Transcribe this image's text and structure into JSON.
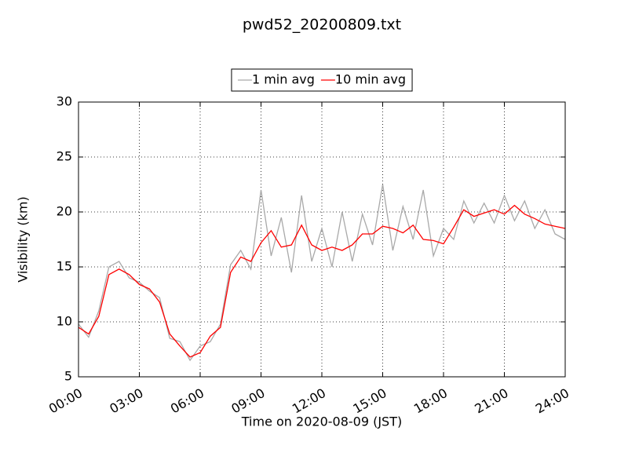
{
  "chart_data": {
    "type": "line",
    "title": "pwd52_20200809.txt",
    "x_label": "Time on 2020-08-09 (JST)",
    "y_label": "Visibility (km)",
    "x": [
      "00:00",
      "00:30",
      "01:00",
      "01:30",
      "02:00",
      "02:30",
      "03:00",
      "03:30",
      "04:00",
      "04:30",
      "05:00",
      "05:30",
      "06:00",
      "06:30",
      "07:00",
      "07:30",
      "08:00",
      "08:30",
      "09:00",
      "09:30",
      "10:00",
      "10:30",
      "11:00",
      "11:30",
      "12:00",
      "12:30",
      "13:00",
      "13:30",
      "14:00",
      "14:30",
      "15:00",
      "15:30",
      "16:00",
      "16:30",
      "17:00",
      "17:30",
      "18:00",
      "18:30",
      "19:00",
      "19:30",
      "20:00",
      "20:30",
      "21:00",
      "21:30",
      "22:00",
      "22:30",
      "23:00",
      "23:30",
      "24:00"
    ],
    "series": [
      {
        "name": "1 min avg",
        "color": "#a9a9a9",
        "values": [
          9.8,
          8.6,
          11,
          15,
          15.5,
          14,
          13.6,
          12.8,
          12.2,
          8.5,
          8.2,
          6.5,
          7.8,
          8.2,
          9.8,
          15.2,
          16.5,
          14.8,
          22,
          16,
          19.5,
          14.5,
          21.5,
          15.5,
          18.5,
          15,
          20,
          15.5,
          19.8,
          17,
          22.5,
          16.5,
          20.5,
          17.5,
          22,
          16,
          18.5,
          17.5,
          21,
          19,
          20.8,
          19,
          21.5,
          19.2,
          21,
          18.5,
          20.2,
          18,
          17.5
        ]
      },
      {
        "name": "10 min avg",
        "color": "#ff0000",
        "values": [
          9.5,
          8.9,
          10.5,
          14.3,
          14.8,
          14.3,
          13.4,
          13.0,
          11.8,
          8.9,
          7.8,
          6.8,
          7.2,
          8.7,
          9.5,
          14.5,
          15.9,
          15.5,
          17.2,
          18.3,
          16.8,
          17,
          18.8,
          17,
          16.5,
          16.8,
          16.5,
          17,
          18,
          18,
          18.7,
          18.5,
          18.1,
          18.8,
          17.5,
          17.4,
          17.1,
          18.6,
          20.2,
          19.6,
          19.9,
          20.2,
          19.8,
          20.6,
          19.8,
          19.4,
          18.9,
          18.7,
          18.5
        ]
      }
    ],
    "xlim": [
      "00:00",
      "24:00"
    ],
    "xticks": [
      "00:00",
      "03:00",
      "06:00",
      "09:00",
      "12:00",
      "15:00",
      "18:00",
      "21:00",
      "24:00"
    ],
    "ylim": [
      5,
      30
    ],
    "yticks": [
      5,
      10,
      15,
      20,
      25,
      30
    ],
    "grid": true,
    "legend": "top"
  }
}
